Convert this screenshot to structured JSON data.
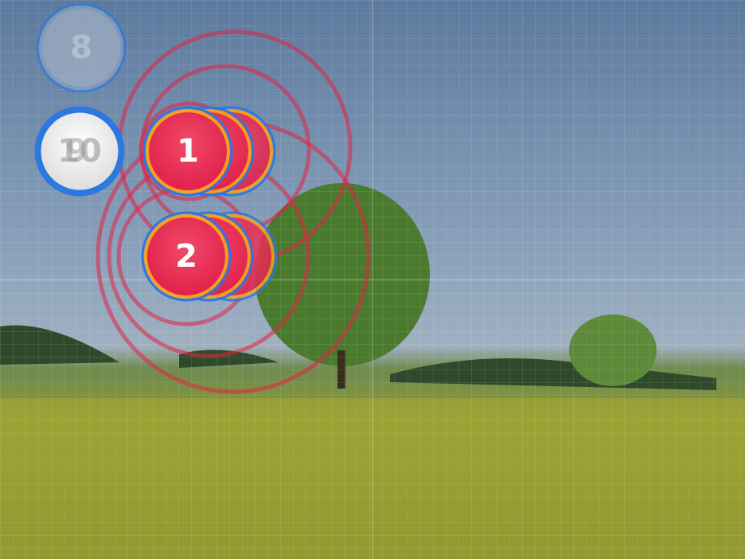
{
  "hit_objects": [
    {
      "label": "8"
    },
    {
      "label": "10"
    },
    {
      "label": "9"
    },
    {
      "label": "1"
    },
    {
      "label": "2"
    }
  ]
}
